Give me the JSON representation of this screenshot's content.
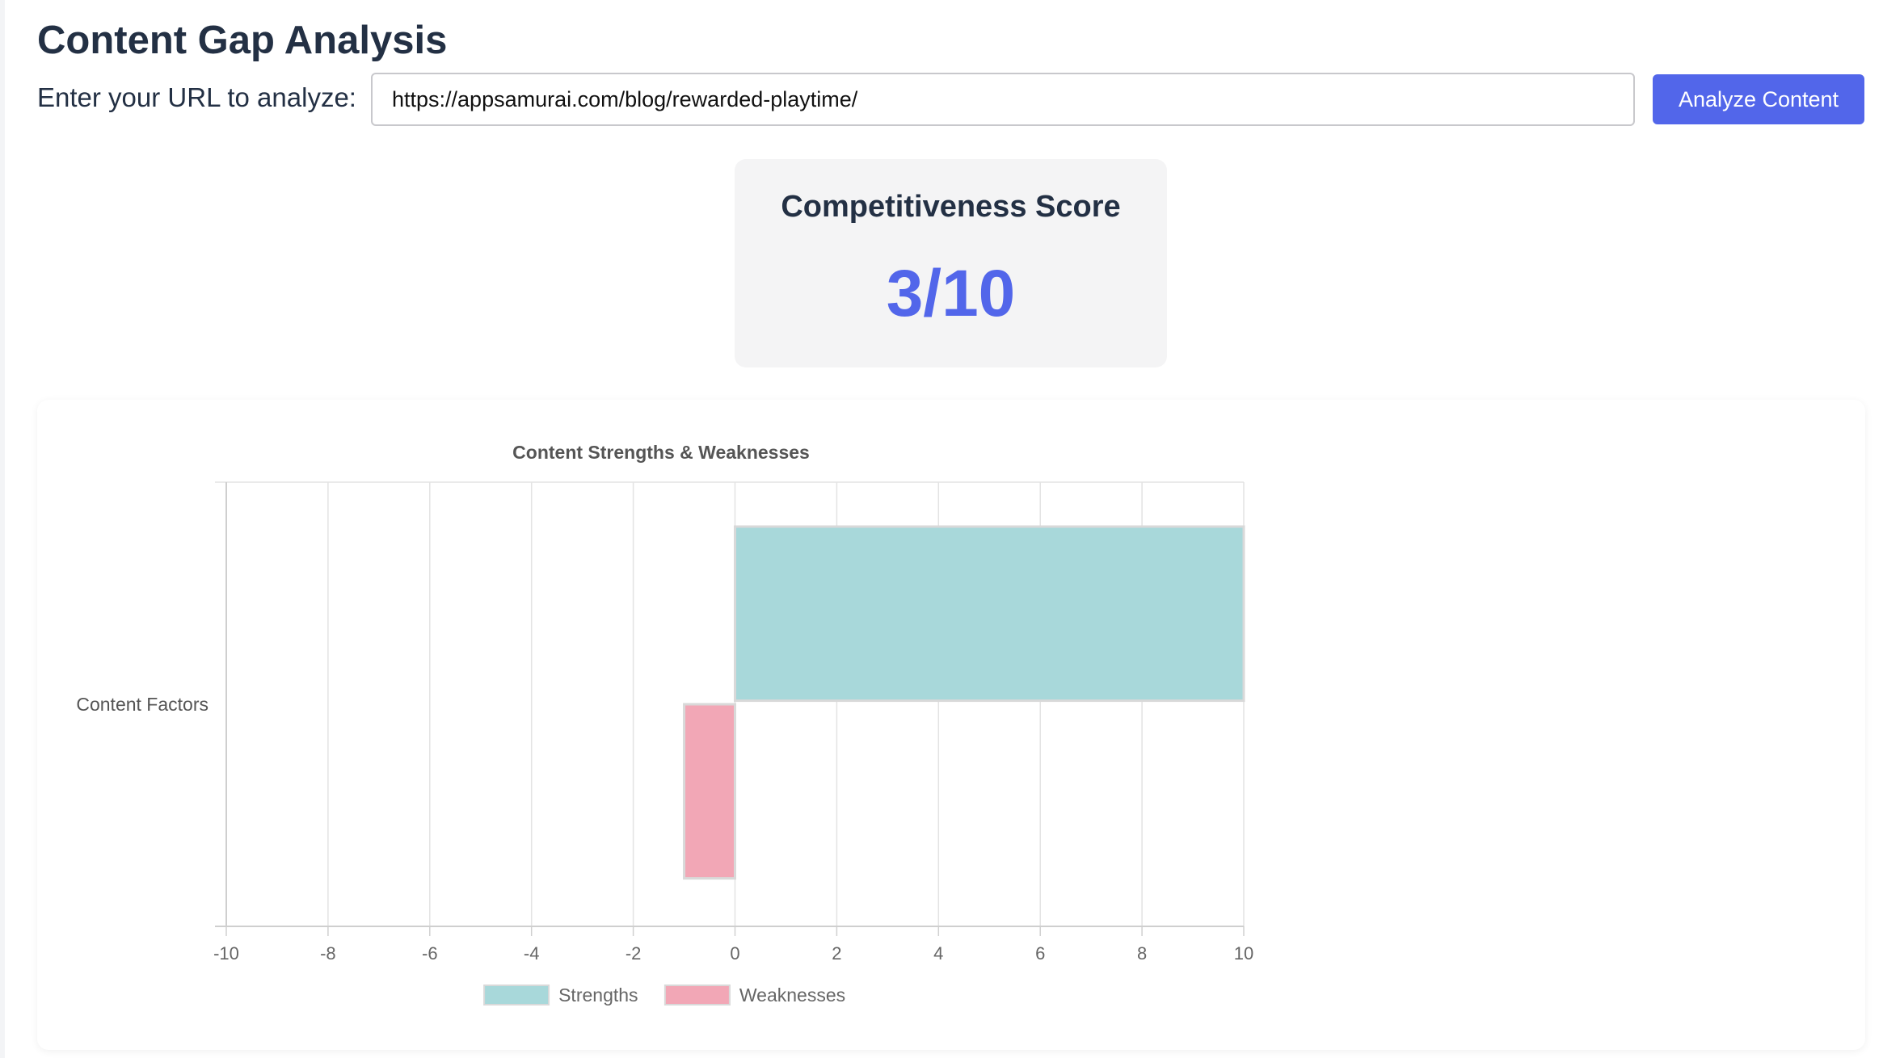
{
  "header": {
    "title": "Content Gap Analysis"
  },
  "url_form": {
    "label": "Enter your URL to analyze:",
    "value": "https://appsamurai.com/blog/rewarded-playtime/",
    "button_label": "Analyze Content"
  },
  "score": {
    "heading": "Competitiveness Score",
    "value": "3/10"
  },
  "colors": {
    "accent": "#5266ea",
    "strengths_fill": "#a8d8da",
    "weaknesses_fill": "#f2a7b6",
    "title_text": "#233044"
  },
  "chart_data": {
    "type": "bar",
    "orientation": "horizontal",
    "title": "Content Strengths & Weaknesses",
    "categories": [
      "Content Factors"
    ],
    "series": [
      {
        "name": "Strengths",
        "values": [
          10
        ],
        "color": "#a8d8da"
      },
      {
        "name": "Weaknesses",
        "values": [
          -1
        ],
        "color": "#f2a7b6"
      }
    ],
    "xlim": [
      -10,
      10
    ],
    "xticks": [
      "-10",
      "-8",
      "-6",
      "-4",
      "-2",
      "0",
      "2",
      "4",
      "6",
      "8",
      "10"
    ],
    "grid": true,
    "legend_position": "bottom"
  }
}
